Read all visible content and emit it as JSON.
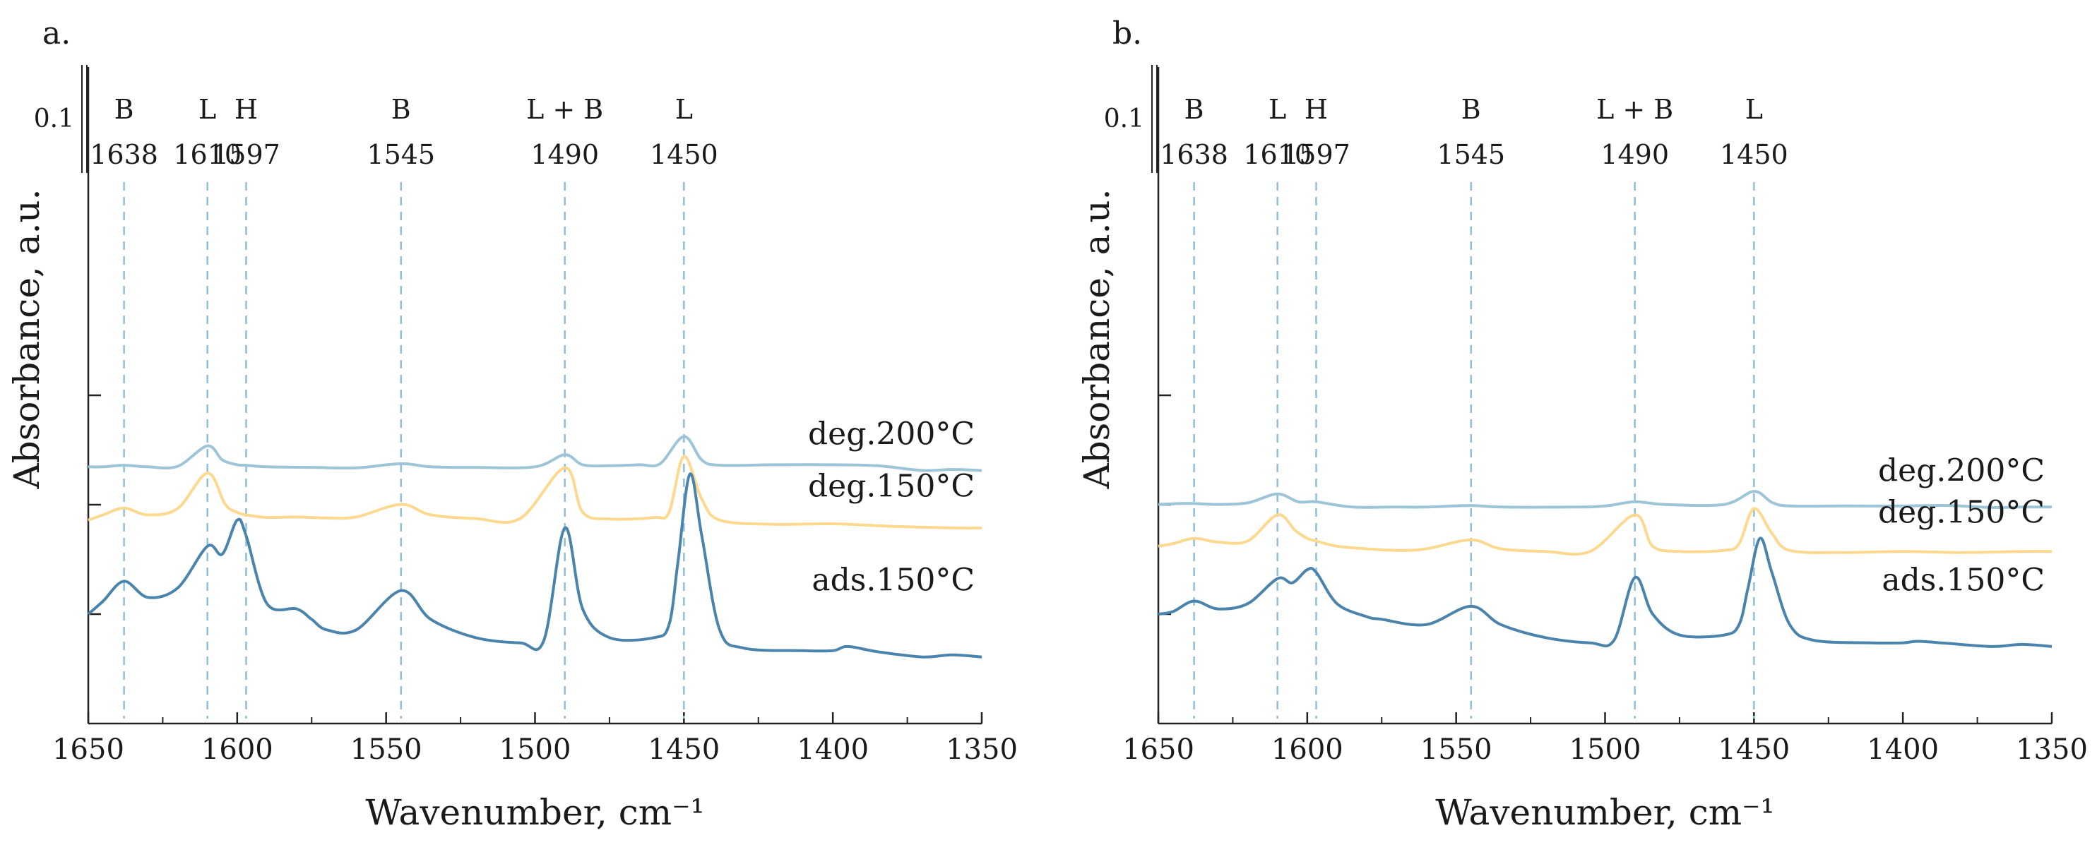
{
  "chart_data": [
    {
      "panel_label": "a.",
      "type": "line",
      "title": "",
      "xlabel": "Wavenumber, cm⁻¹",
      "ylabel": "Absorbance, a.u.",
      "xlim": [
        1650,
        1350
      ],
      "x_ticks": [
        "1650",
        "1600",
        "1550",
        "1500",
        "1450",
        "1400",
        "1350"
      ],
      "scale_bar_label": "0.1",
      "grid": false,
      "peak_markers": [
        {
          "type": "B",
          "wavenumber": "1638"
        },
        {
          "type": "L",
          "wavenumber": "1610"
        },
        {
          "type": "H",
          "wavenumber": "1597"
        },
        {
          "type": "B",
          "wavenumber": "1545"
        },
        {
          "type": "L + B",
          "wavenumber": "1490"
        },
        {
          "type": "L",
          "wavenumber": "1450"
        }
      ],
      "series": [
        {
          "name": "deg.200°C",
          "color": "#9cc5d8",
          "offset": 2.8,
          "points": [
            [
              1650,
              0.02
            ],
            [
              1645,
              0.02
            ],
            [
              1638,
              0.05
            ],
            [
              1630,
              0.02
            ],
            [
              1620,
              0.03
            ],
            [
              1610,
              0.42
            ],
            [
              1605,
              0.15
            ],
            [
              1600,
              0.06
            ],
            [
              1597,
              0.05
            ],
            [
              1590,
              0.02
            ],
            [
              1575,
              0.01
            ],
            [
              1560,
              0.0
            ],
            [
              1545,
              0.08
            ],
            [
              1535,
              0.02
            ],
            [
              1520,
              0.01
            ],
            [
              1500,
              0.02
            ],
            [
              1490,
              0.25
            ],
            [
              1484,
              0.06
            ],
            [
              1475,
              0.04
            ],
            [
              1465,
              0.06
            ],
            [
              1458,
              0.08
            ],
            [
              1450,
              0.6
            ],
            [
              1444,
              0.15
            ],
            [
              1438,
              0.05
            ],
            [
              1420,
              0.06
            ],
            [
              1400,
              0.06
            ],
            [
              1385,
              0.04
            ],
            [
              1370,
              -0.05
            ],
            [
              1360,
              -0.03
            ],
            [
              1350,
              -0.05
            ]
          ]
        },
        {
          "name": "deg.150°C",
          "color": "#fcd98f",
          "offset": 1.8,
          "points": [
            [
              1650,
              0.0
            ],
            [
              1645,
              0.1
            ],
            [
              1638,
              0.23
            ],
            [
              1630,
              0.1
            ],
            [
              1620,
              0.22
            ],
            [
              1610,
              0.9
            ],
            [
              1604,
              0.3
            ],
            [
              1600,
              0.15
            ],
            [
              1597,
              0.1
            ],
            [
              1590,
              0.05
            ],
            [
              1580,
              0.06
            ],
            [
              1570,
              0.04
            ],
            [
              1560,
              0.06
            ],
            [
              1545,
              0.3
            ],
            [
              1535,
              0.1
            ],
            [
              1520,
              0.03
            ],
            [
              1505,
              0.03
            ],
            [
              1490,
              1.0
            ],
            [
              1484,
              0.15
            ],
            [
              1475,
              0.02
            ],
            [
              1460,
              0.05
            ],
            [
              1455,
              0.15
            ],
            [
              1450,
              1.22
            ],
            [
              1444,
              0.4
            ],
            [
              1438,
              0.0
            ],
            [
              1420,
              -0.08
            ],
            [
              1400,
              -0.07
            ],
            [
              1380,
              -0.12
            ],
            [
              1360,
              -0.15
            ],
            [
              1350,
              -0.15
            ]
          ]
        },
        {
          "name": "ads.150°C",
          "color": "#4a84ad",
          "offset": 0.0,
          "points": [
            [
              1650,
              0.0
            ],
            [
              1645,
              0.25
            ],
            [
              1638,
              0.63
            ],
            [
              1630,
              0.32
            ],
            [
              1620,
              0.5
            ],
            [
              1610,
              1.3
            ],
            [
              1605,
              1.15
            ],
            [
              1600,
              1.8
            ],
            [
              1597,
              1.5
            ],
            [
              1590,
              0.2
            ],
            [
              1580,
              0.1
            ],
            [
              1575,
              -0.1
            ],
            [
              1570,
              -0.3
            ],
            [
              1560,
              -0.3
            ],
            [
              1545,
              0.45
            ],
            [
              1535,
              -0.1
            ],
            [
              1520,
              -0.45
            ],
            [
              1505,
              -0.55
            ],
            [
              1497,
              -0.5
            ],
            [
              1490,
              1.65
            ],
            [
              1484,
              0.1
            ],
            [
              1475,
              -0.45
            ],
            [
              1460,
              -0.45
            ],
            [
              1455,
              -0.2
            ],
            [
              1452,
              1.0
            ],
            [
              1448,
              2.68
            ],
            [
              1444,
              1.5
            ],
            [
              1438,
              -0.3
            ],
            [
              1430,
              -0.65
            ],
            [
              1410,
              -0.7
            ],
            [
              1400,
              -0.7
            ],
            [
              1395,
              -0.62
            ],
            [
              1385,
              -0.72
            ],
            [
              1370,
              -0.82
            ],
            [
              1360,
              -0.78
            ],
            [
              1350,
              -0.82
            ]
          ]
        }
      ]
    },
    {
      "panel_label": "b.",
      "type": "line",
      "title": "",
      "xlabel": "Wavenumber, cm⁻¹",
      "ylabel": "Absorbance, a.u.",
      "xlim": [
        1650,
        1350
      ],
      "x_ticks": [
        "1650",
        "1600",
        "1550",
        "1500",
        "1450",
        "1400",
        "1350"
      ],
      "scale_bar_label": "0.1",
      "grid": false,
      "peak_markers": [
        {
          "type": "B",
          "wavenumber": "1638"
        },
        {
          "type": "L",
          "wavenumber": "1610"
        },
        {
          "type": "H",
          "wavenumber": "1597"
        },
        {
          "type": "B",
          "wavenumber": "1545"
        },
        {
          "type": "L + B",
          "wavenumber": "1490"
        },
        {
          "type": "L",
          "wavenumber": "1450"
        }
      ],
      "series": [
        {
          "name": "deg.200°C",
          "color": "#9cc5d8",
          "offset": 2.1,
          "points": [
            [
              1650,
              0.0
            ],
            [
              1640,
              0.02
            ],
            [
              1630,
              0.0
            ],
            [
              1620,
              0.03
            ],
            [
              1610,
              0.2
            ],
            [
              1603,
              0.05
            ],
            [
              1597,
              0.05
            ],
            [
              1585,
              -0.05
            ],
            [
              1570,
              -0.05
            ],
            [
              1560,
              -0.05
            ],
            [
              1545,
              -0.02
            ],
            [
              1535,
              -0.05
            ],
            [
              1510,
              -0.05
            ],
            [
              1500,
              -0.03
            ],
            [
              1490,
              0.05
            ],
            [
              1480,
              0.0
            ],
            [
              1460,
              0.0
            ],
            [
              1450,
              0.25
            ],
            [
              1444,
              0.04
            ],
            [
              1438,
              -0.03
            ],
            [
              1420,
              -0.03
            ],
            [
              1400,
              -0.03
            ],
            [
              1385,
              -0.02
            ],
            [
              1370,
              -0.06
            ],
            [
              1360,
              -0.05
            ],
            [
              1350,
              -0.05
            ]
          ]
        },
        {
          "name": "deg.150°C",
          "color": "#fcd98f",
          "offset": 1.3,
          "points": [
            [
              1650,
              0.0
            ],
            [
              1645,
              0.05
            ],
            [
              1638,
              0.15
            ],
            [
              1630,
              0.08
            ],
            [
              1620,
              0.1
            ],
            [
              1610,
              0.6
            ],
            [
              1604,
              0.3
            ],
            [
              1600,
              0.15
            ],
            [
              1597,
              0.1
            ],
            [
              1590,
              0.0
            ],
            [
              1580,
              -0.05
            ],
            [
              1570,
              -0.08
            ],
            [
              1560,
              -0.05
            ],
            [
              1545,
              0.12
            ],
            [
              1535,
              -0.05
            ],
            [
              1520,
              -0.1
            ],
            [
              1505,
              -0.1
            ],
            [
              1490,
              0.6
            ],
            [
              1484,
              0.0
            ],
            [
              1475,
              -0.1
            ],
            [
              1460,
              -0.08
            ],
            [
              1455,
              0.05
            ],
            [
              1450,
              0.72
            ],
            [
              1444,
              0.25
            ],
            [
              1438,
              -0.08
            ],
            [
              1420,
              -0.12
            ],
            [
              1400,
              -0.1
            ],
            [
              1380,
              -0.12
            ],
            [
              1360,
              -0.1
            ],
            [
              1350,
              -0.1
            ]
          ]
        },
        {
          "name": "ads.150°C",
          "color": "#4a84ad",
          "offset": 0.0,
          "points": [
            [
              1650,
              0.0
            ],
            [
              1645,
              0.05
            ],
            [
              1638,
              0.25
            ],
            [
              1630,
              0.1
            ],
            [
              1620,
              0.2
            ],
            [
              1610,
              0.68
            ],
            [
              1605,
              0.6
            ],
            [
              1600,
              0.85
            ],
            [
              1597,
              0.8
            ],
            [
              1590,
              0.2
            ],
            [
              1580,
              -0.05
            ],
            [
              1575,
              -0.1
            ],
            [
              1560,
              -0.2
            ],
            [
              1545,
              0.15
            ],
            [
              1535,
              -0.2
            ],
            [
              1520,
              -0.45
            ],
            [
              1505,
              -0.55
            ],
            [
              1497,
              -0.5
            ],
            [
              1490,
              0.7
            ],
            [
              1484,
              0.0
            ],
            [
              1475,
              -0.4
            ],
            [
              1460,
              -0.4
            ],
            [
              1455,
              -0.2
            ],
            [
              1452,
              0.5
            ],
            [
              1448,
              1.45
            ],
            [
              1444,
              0.8
            ],
            [
              1438,
              -0.2
            ],
            [
              1430,
              -0.5
            ],
            [
              1410,
              -0.55
            ],
            [
              1400,
              -0.55
            ],
            [
              1395,
              -0.52
            ],
            [
              1385,
              -0.56
            ],
            [
              1370,
              -0.62
            ],
            [
              1360,
              -0.58
            ],
            [
              1350,
              -0.62
            ]
          ]
        }
      ]
    }
  ]
}
